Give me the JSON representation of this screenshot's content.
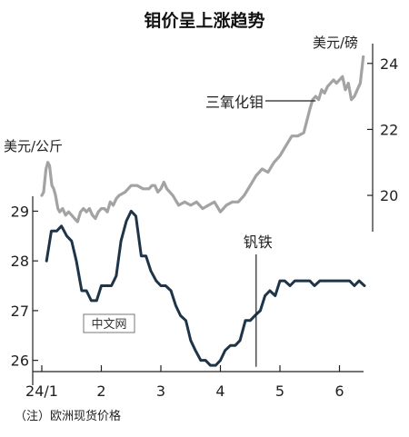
{
  "chart_data": {
    "type": "line",
    "title": "钼价呈上涨趋势",
    "note": "（注）欧洲现货价格",
    "watermark": "中文网",
    "x_ticks": [
      "24/1",
      "2",
      "3",
      "4",
      "5",
      "6"
    ],
    "left_axis": {
      "unit": "美元/公斤",
      "ticks": [
        26,
        27,
        28,
        29
      ],
      "range": [
        25.5,
        29.3
      ]
    },
    "right_axis": {
      "unit": "美元/磅",
      "ticks": [
        20,
        22,
        24
      ],
      "range": [
        18.9,
        24.6
      ]
    },
    "series": [
      {
        "name": "三氧化钼",
        "axis": "right",
        "color": "#a3a3a3",
        "x": [
          1.0,
          1.03,
          1.07,
          1.1,
          1.13,
          1.17,
          1.2,
          1.23,
          1.27,
          1.3,
          1.35,
          1.4,
          1.45,
          1.5,
          1.55,
          1.6,
          1.65,
          1.7,
          1.75,
          1.8,
          1.85,
          1.9,
          1.95,
          2.0,
          2.05,
          2.1,
          2.15,
          2.2,
          2.25,
          2.3,
          2.4,
          2.5,
          2.6,
          2.7,
          2.8,
          2.85,
          2.9,
          2.95,
          3.0,
          3.05,
          3.1,
          3.2,
          3.3,
          3.4,
          3.5,
          3.6,
          3.7,
          3.8,
          3.9,
          4.0,
          4.1,
          4.2,
          4.3,
          4.4,
          4.5,
          4.6,
          4.7,
          4.8,
          4.9,
          5.0,
          5.1,
          5.2,
          5.3,
          5.4,
          5.5,
          5.55,
          5.6,
          5.65,
          5.7,
          5.75,
          5.8,
          5.85,
          5.9,
          5.95,
          6.0,
          6.05,
          6.1,
          6.15,
          6.2,
          6.25,
          6.3,
          6.35,
          6.4
        ],
        "values": [
          20.0,
          20.1,
          20.8,
          21.0,
          20.9,
          20.3,
          20.2,
          20.0,
          19.6,
          19.5,
          19.6,
          19.4,
          19.5,
          19.4,
          19.3,
          19.2,
          19.5,
          19.6,
          19.5,
          19.6,
          19.4,
          19.3,
          19.5,
          19.6,
          19.6,
          19.5,
          19.8,
          19.7,
          19.9,
          20.0,
          20.1,
          20.3,
          20.3,
          20.2,
          20.2,
          20.3,
          20.3,
          20.1,
          20.2,
          20.4,
          20.2,
          20.0,
          19.7,
          19.8,
          19.7,
          19.8,
          19.6,
          19.7,
          19.8,
          19.5,
          19.7,
          19.8,
          19.8,
          20.0,
          20.3,
          20.6,
          20.8,
          20.7,
          21.0,
          21.2,
          21.5,
          21.8,
          21.8,
          21.9,
          22.6,
          22.9,
          23.0,
          22.9,
          23.2,
          23.1,
          23.3,
          23.4,
          23.5,
          23.4,
          23.5,
          23.6,
          23.2,
          23.4,
          22.9,
          23.0,
          23.2,
          23.4,
          24.2
        ]
      },
      {
        "name": "钒铁",
        "axis": "left",
        "color": "#1e3448",
        "x": [
          1.08,
          1.16,
          1.25,
          1.33,
          1.42,
          1.5,
          1.58,
          1.67,
          1.75,
          1.83,
          1.92,
          2.0,
          2.08,
          2.17,
          2.25,
          2.33,
          2.42,
          2.5,
          2.58,
          2.67,
          2.75,
          2.83,
          2.92,
          3.0,
          3.08,
          3.17,
          3.25,
          3.33,
          3.42,
          3.5,
          3.58,
          3.67,
          3.75,
          3.83,
          3.92,
          4.0,
          4.08,
          4.17,
          4.25,
          4.33,
          4.42,
          4.5,
          4.58,
          4.67,
          4.75,
          4.83,
          4.92,
          5.0,
          5.08,
          5.17,
          5.25,
          5.33,
          5.42,
          5.5,
          5.58,
          5.67,
          5.75,
          5.83,
          5.92,
          6.0,
          6.08,
          6.17,
          6.25,
          6.33,
          6.42
        ],
        "values": [
          28.0,
          28.6,
          28.6,
          28.7,
          28.5,
          28.4,
          28.0,
          27.4,
          27.4,
          27.2,
          27.2,
          27.5,
          27.5,
          27.5,
          27.7,
          28.4,
          28.8,
          29.0,
          28.9,
          28.1,
          28.1,
          27.8,
          27.6,
          27.5,
          27.5,
          27.4,
          27.1,
          26.9,
          26.8,
          26.4,
          26.2,
          26.0,
          26.0,
          25.9,
          25.9,
          26.0,
          26.2,
          26.3,
          26.3,
          26.4,
          26.8,
          26.8,
          26.9,
          27.0,
          27.3,
          27.4,
          27.3,
          27.6,
          27.6,
          27.5,
          27.6,
          27.6,
          27.6,
          27.6,
          27.5,
          27.6,
          27.6,
          27.6,
          27.6,
          27.6,
          27.6,
          27.6,
          27.5,
          27.6,
          27.5
        ]
      }
    ]
  }
}
